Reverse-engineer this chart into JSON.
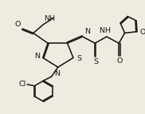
{
  "bg_color": "#f0ebe0",
  "line_color": "#1a1a1a",
  "lw": 1.15,
  "fs": 6.8,
  "figsize": [
    1.82,
    1.43
  ],
  "dpi": 100,
  "xlim": [
    0,
    10
  ],
  "ylim": [
    0,
    7.8
  ]
}
